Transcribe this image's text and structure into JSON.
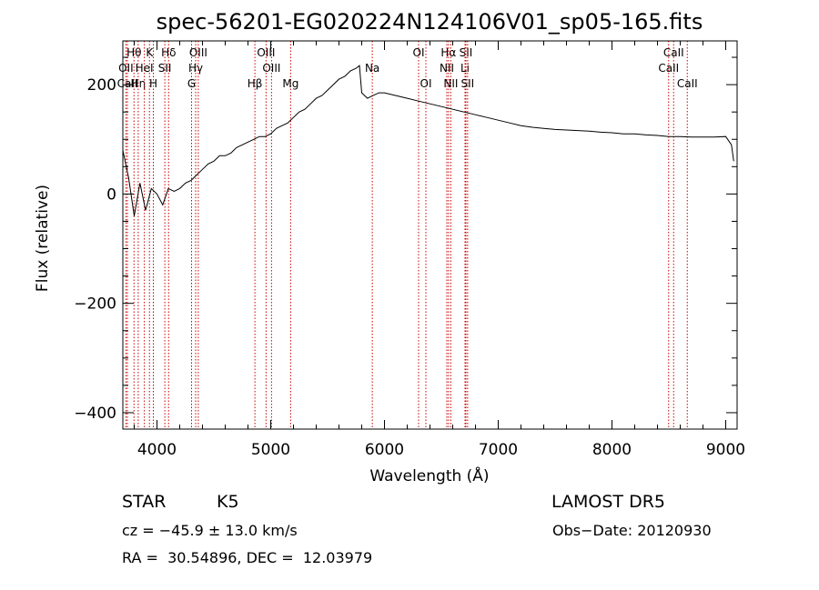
{
  "chart_data": {
    "type": "line",
    "title": "spec-56201-EG020224N124106V01_sp05-165.fits",
    "xlabel": "Wavelength (Å)",
    "ylabel": "Flux (relative)",
    "xlim": [
      3700,
      9100
    ],
    "ylim": [
      -430,
      280
    ],
    "xticks": [
      4000,
      5000,
      6000,
      7000,
      8000,
      9000
    ],
    "yticks": [
      -400,
      -200,
      0,
      200
    ],
    "grid": false,
    "series": [
      {
        "x": [
          3700,
          3750,
          3800,
          3850,
          3900,
          3950,
          4000,
          4050,
          4100,
          4150,
          4200,
          4250,
          4300,
          4350,
          4400,
          4450,
          4500,
          4550,
          4600,
          4650,
          4700,
          4750,
          4800,
          4850,
          4900,
          4950,
          5000,
          5050,
          5100,
          5150,
          5200,
          5250,
          5300,
          5350,
          5400,
          5450,
          5500,
          5550,
          5600,
          5650,
          5700,
          5750,
          5780,
          5800,
          5850,
          5900,
          5950,
          6000,
          6100,
          6200,
          6300,
          6400,
          6500,
          6600,
          6700,
          6800,
          6900,
          7000,
          7100,
          7200,
          7300,
          7400,
          7500,
          7600,
          7700,
          7800,
          7900,
          8000,
          8100,
          8200,
          8300,
          8400,
          8500,
          8600,
          8700,
          8800,
          8900,
          9000,
          9050,
          9070
        ],
        "y": [
          80,
          30,
          -40,
          20,
          -30,
          10,
          0,
          -20,
          10,
          5,
          10,
          20,
          25,
          35,
          45,
          55,
          60,
          70,
          70,
          75,
          85,
          90,
          95,
          100,
          105,
          105,
          110,
          120,
          125,
          130,
          140,
          150,
          155,
          165,
          175,
          180,
          190,
          200,
          210,
          215,
          225,
          230,
          235,
          185,
          175,
          180,
          185,
          185,
          180,
          175,
          170,
          165,
          160,
          155,
          150,
          145,
          140,
          135,
          130,
          125,
          122,
          120,
          118,
          117,
          116,
          115,
          113,
          112,
          110,
          110,
          108,
          107,
          105,
          105,
          104,
          104,
          104,
          105,
          90,
          60
        ]
      }
    ],
    "lines": [
      {
        "label": "Hθ",
        "x": 3798,
        "row": 1
      },
      {
        "label": "OII",
        "x": 3727,
        "row": 2
      },
      {
        "label": "CaII",
        "x": 3740,
        "row": 3
      },
      {
        "label": "Hη",
        "x": 3835,
        "row": 3
      },
      {
        "label": "K",
        "x": 3934,
        "row": 1
      },
      {
        "label": "HeI",
        "x": 3889,
        "row": 2
      },
      {
        "label": "H",
        "x": 3968,
        "row": 3
      },
      {
        "label": "Hδ",
        "x": 4102,
        "row": 1
      },
      {
        "label": "SII",
        "x": 4069,
        "row": 2
      },
      {
        "label": "OIII",
        "x": 4363,
        "row": 1
      },
      {
        "label": "Hγ",
        "x": 4340,
        "row": 2
      },
      {
        "label": "G",
        "x": 4304,
        "row": 3
      },
      {
        "label": "Hβ",
        "x": 4861,
        "row": 3
      },
      {
        "label": "OIII",
        "x": 4959,
        "row": 1
      },
      {
        "label": "OIII",
        "x": 5007,
        "row": 2
      },
      {
        "label": "Mg",
        "x": 5175,
        "row": 3
      },
      {
        "label": "Na",
        "x": 5893,
        "row": 2
      },
      {
        "label": "OI",
        "x": 6300,
        "row": 1
      },
      {
        "label": "OI",
        "x": 6364,
        "row": 3
      },
      {
        "label": "Hα",
        "x": 6563,
        "row": 1
      },
      {
        "label": "NII",
        "x": 6548,
        "row": 2
      },
      {
        "label": "NII",
        "x": 6583,
        "row": 3
      },
      {
        "label": "SII",
        "x": 6716,
        "row": 1
      },
      {
        "label": "Li",
        "x": 6708,
        "row": 2
      },
      {
        "label": "SII",
        "x": 6731,
        "row": 3
      },
      {
        "label": "CaII",
        "x": 8542,
        "row": 1
      },
      {
        "label": "CaII",
        "x": 8498,
        "row": 2
      },
      {
        "label": "CaII",
        "x": 8662,
        "row": 3
      }
    ]
  },
  "info": {
    "class_label": "STAR",
    "subclass": "K5",
    "survey": "LAMOST DR5",
    "cz": "cz = −45.9 ± 13.0 km/s",
    "obs_date": "Obs−Date: 20120930",
    "coords": "RA =  30.54896, DEC =  12.03979"
  },
  "colors": {
    "spectrum": "#000000",
    "line_marker": "#cc0000"
  }
}
